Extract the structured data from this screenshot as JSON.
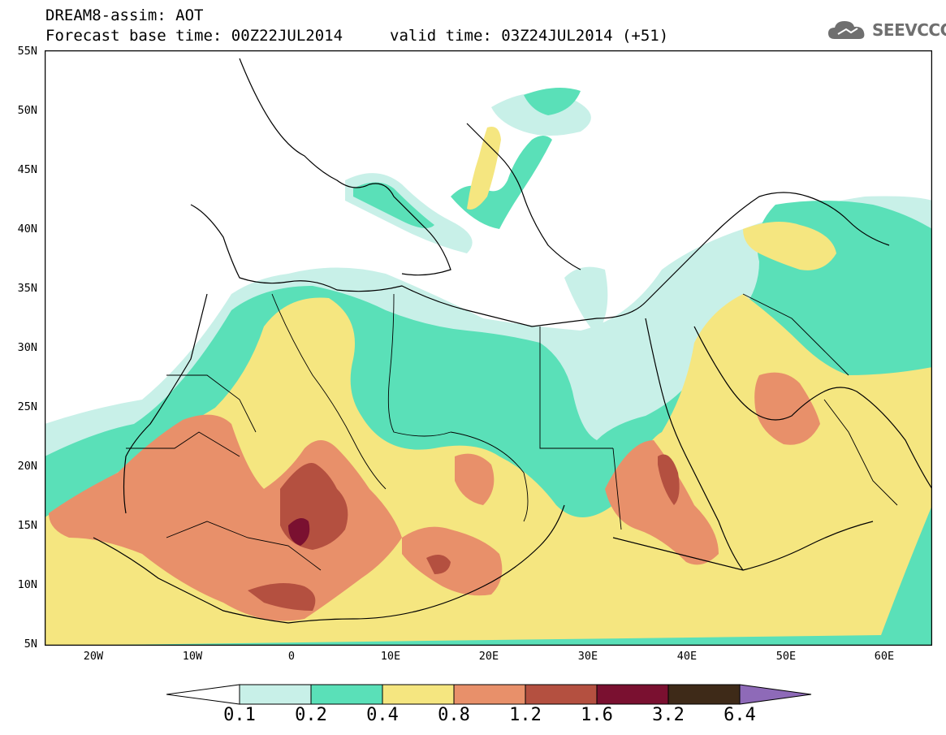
{
  "header": {
    "line1": "DREAM8-assim: AOT",
    "line2": "Forecast base time: 00Z22JUL2014",
    "line3": "valid time: 03Z24JUL2014 (+51)"
  },
  "logo": {
    "text": "SEEVCCC",
    "icon": "cloud-icon"
  },
  "map": {
    "lat_labels": [
      "55N",
      "50N",
      "45N",
      "40N",
      "35N",
      "30N",
      "25N",
      "20N",
      "15N",
      "10N",
      "5N"
    ],
    "lon_labels": [
      "20W",
      "10W",
      "0",
      "10E",
      "20E",
      "30E",
      "40E",
      "50E",
      "60E"
    ],
    "lat_range": [
      5,
      55
    ],
    "lon_range": [
      -25,
      65
    ]
  },
  "colorbar": {
    "labels": [
      "0.1",
      "0.2",
      "0.4",
      "0.8",
      "1.2",
      "1.6",
      "3.2",
      "6.4"
    ],
    "colors": [
      "#ffffff",
      "#c8f0e8",
      "#5ae0b8",
      "#f5e680",
      "#e8906a",
      "#b45040",
      "#7a1030",
      "#3e2a18",
      "#8e6ab8"
    ]
  }
}
